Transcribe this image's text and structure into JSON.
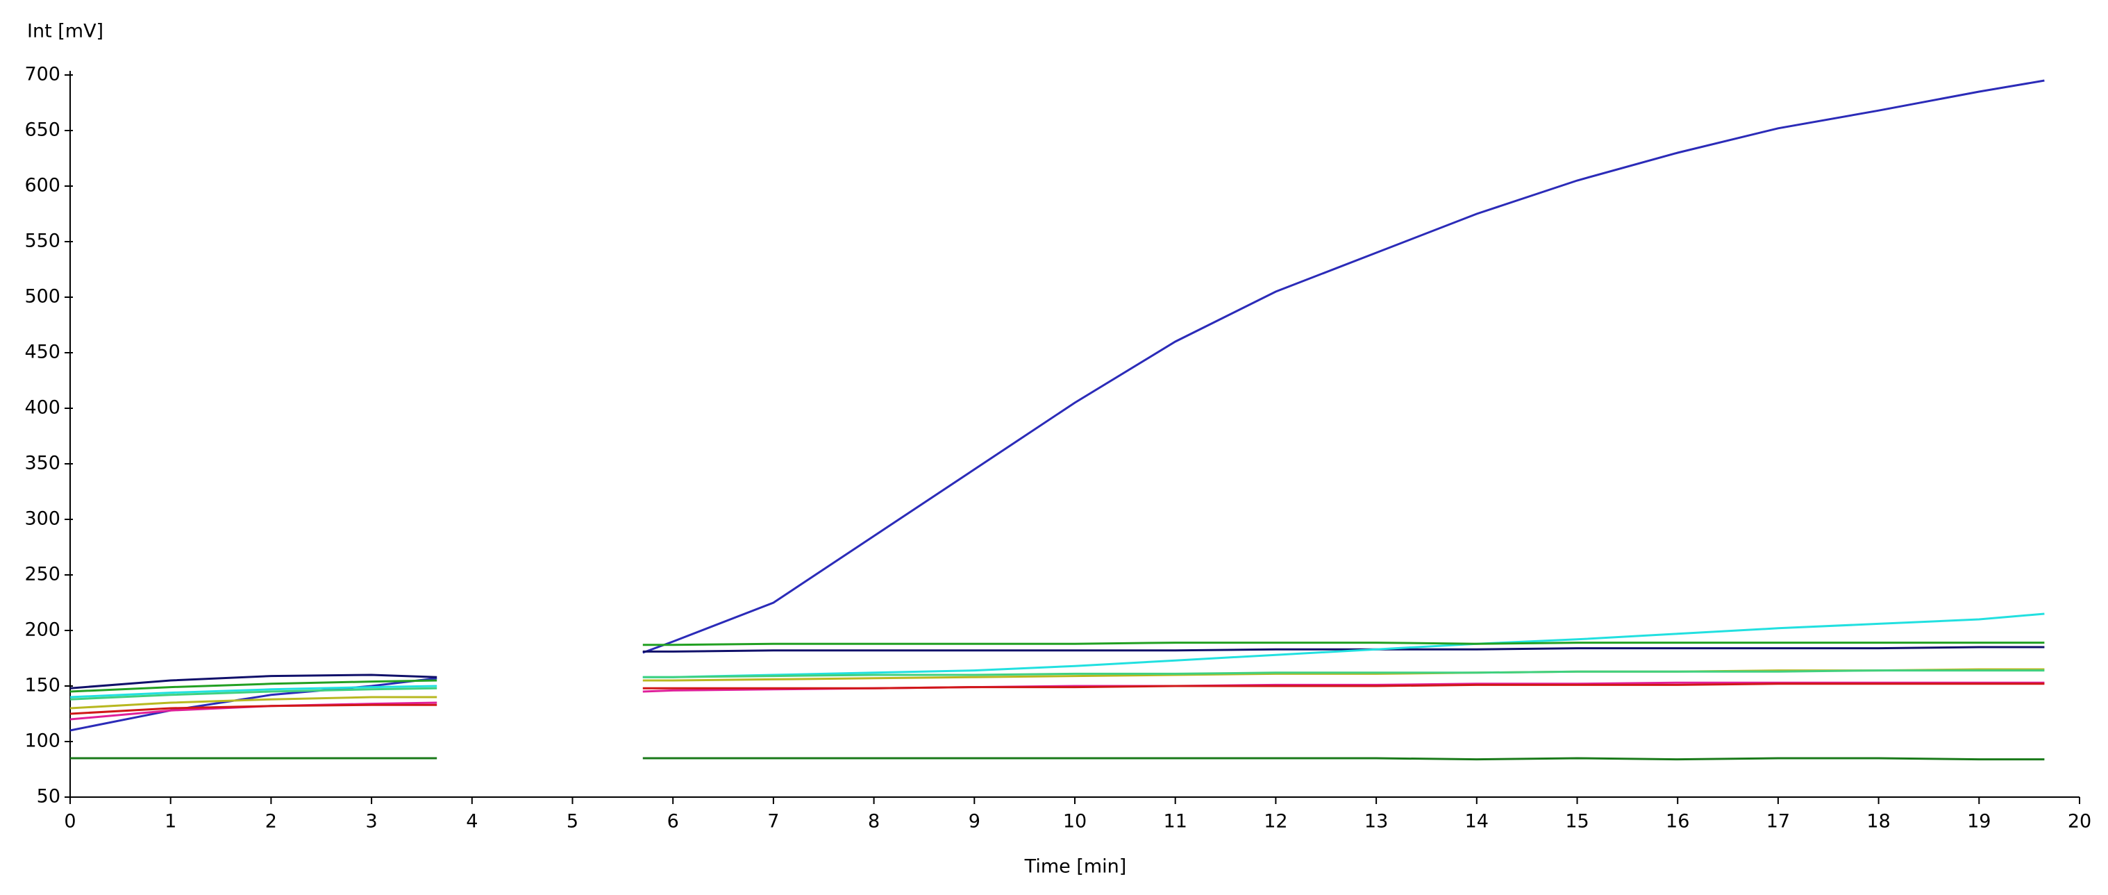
{
  "chart_data": {
    "type": "line",
    "y_label": "Int [mV]",
    "x_label": "Time [min]",
    "x": [
      0,
      1,
      2,
      3,
      3.65,
      4.65,
      5.7,
      6,
      7,
      8,
      9,
      10,
      11,
      12,
      13,
      14,
      15,
      16,
      17,
      18,
      19,
      19.65
    ],
    "xlim": [
      0,
      20
    ],
    "xticks": [
      0,
      1,
      2,
      3,
      4,
      5,
      6,
      7,
      8,
      9,
      10,
      11,
      12,
      13,
      14,
      15,
      16,
      17,
      18,
      19,
      20
    ],
    "ylim": [
      50,
      700
    ],
    "yticks": [
      50,
      100,
      150,
      200,
      250,
      300,
      350,
      400,
      450,
      500,
      550,
      600,
      650,
      700
    ],
    "series": [
      {
        "color": "#2b2bb8",
        "values": [
          110,
          128,
          142,
          150,
          157,
          null,
          180,
          190,
          225,
          285,
          345,
          405,
          460,
          505,
          540,
          575,
          605,
          630,
          652,
          668,
          685,
          695
        ]
      },
      {
        "color": "#10106a",
        "values": [
          148,
          155,
          159,
          160,
          158,
          null,
          181,
          181,
          182,
          182,
          182,
          182,
          182,
          183,
          183,
          183,
          184,
          184,
          184,
          184,
          185,
          185
        ]
      },
      {
        "color": "#22e0e0",
        "values": [
          140,
          144,
          147,
          149,
          150,
          null,
          158,
          158,
          160,
          162,
          164,
          168,
          173,
          178,
          183,
          188,
          192,
          197,
          202,
          206,
          210,
          215
        ]
      },
      {
        "color": "#22a022",
        "values": [
          145,
          149,
          152,
          154,
          155,
          null,
          187,
          187,
          188,
          188,
          188,
          188,
          189,
          189,
          189,
          188,
          189,
          189,
          189,
          189,
          189,
          189
        ]
      },
      {
        "color": "#1a7a1a",
        "values": [
          85,
          85,
          85,
          85,
          85,
          null,
          85,
          85,
          85,
          85,
          85,
          85,
          85,
          85,
          85,
          84,
          85,
          84,
          85,
          85,
          84,
          84
        ]
      },
      {
        "color": "#b8b820",
        "values": [
          130,
          135,
          138,
          140,
          140,
          null,
          155,
          155,
          156,
          157,
          158,
          159,
          160,
          161,
          161,
          162,
          163,
          163,
          164,
          164,
          165,
          165
        ]
      },
      {
        "color": "#e0209a",
        "values": [
          120,
          128,
          132,
          134,
          135,
          null,
          145,
          146,
          147,
          148,
          149,
          150,
          150,
          151,
          151,
          152,
          152,
          153,
          153,
          153,
          153,
          153
        ]
      },
      {
        "color": "#d01818",
        "values": [
          125,
          130,
          132,
          133,
          133,
          null,
          148,
          148,
          148,
          148,
          149,
          149,
          150,
          150,
          150,
          151,
          151,
          151,
          152,
          152,
          152,
          152
        ]
      },
      {
        "color": "#40d080",
        "values": [
          138,
          142,
          145,
          147,
          148,
          null,
          158,
          158,
          159,
          160,
          160,
          161,
          161,
          162,
          162,
          162,
          163,
          163,
          163,
          164,
          164,
          164
        ]
      }
    ]
  }
}
